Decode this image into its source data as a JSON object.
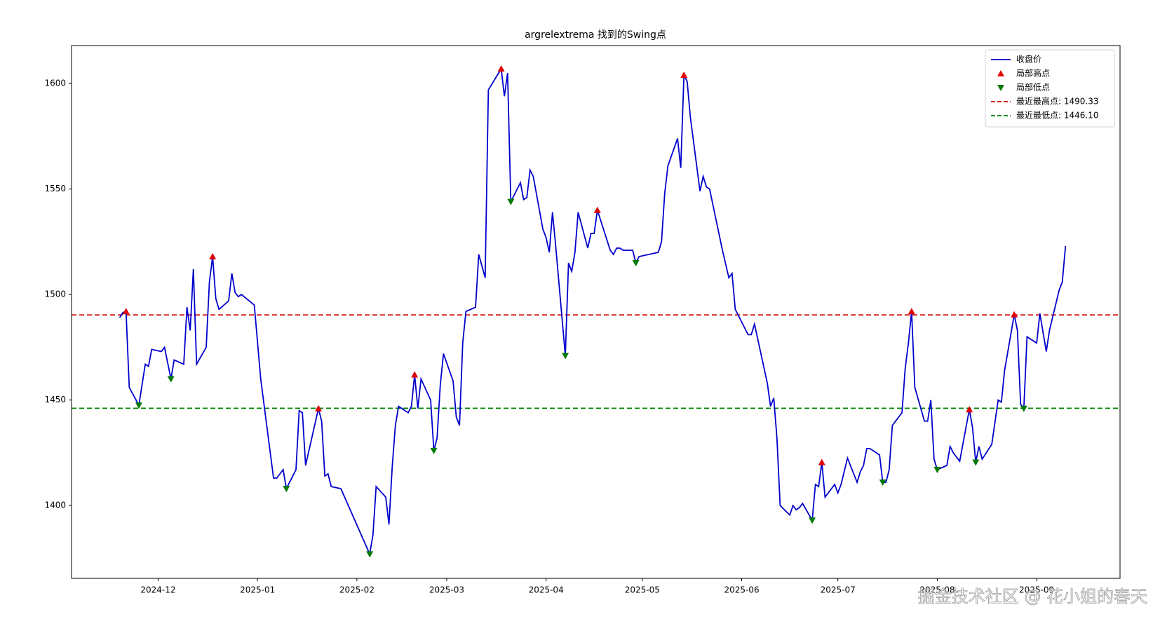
{
  "chart_data": {
    "type": "line",
    "title": "argrelextrema 找到的Swing点",
    "x": [
      -12,
      -11,
      -10,
      -9,
      -6,
      -4,
      -3,
      -2,
      1,
      2,
      4,
      5,
      8,
      9,
      10,
      11,
      12,
      15,
      16,
      17,
      18,
      19,
      22,
      23,
      24,
      25,
      26,
      30,
      32,
      36,
      37,
      39,
      40,
      43,
      44,
      45,
      46,
      50,
      51,
      52,
      53,
      54,
      57,
      66,
      67,
      68,
      71,
      72,
      73,
      74,
      75,
      78,
      79,
      80,
      81,
      82,
      85,
      86,
      87,
      88,
      89,
      92,
      93,
      94,
      95,
      96,
      99,
      100,
      102,
      103,
      107,
      108,
      109,
      110,
      113,
      114,
      115,
      116,
      117,
      120,
      121,
      122,
      123,
      124,
      127,
      128,
      129,
      130,
      131,
      134,
      135,
      136,
      137,
      141,
      142,
      143,
      144,
      145,
      148,
      149,
      150,
      156,
      157,
      158,
      159,
      162,
      163,
      164,
      165,
      166,
      169,
      170,
      171,
      172,
      176,
      178,
      179,
      180,
      184,
      185,
      186,
      190,
      191,
      192,
      193,
      194,
      197,
      198,
      199,
      200,
      201,
      204,
      205,
      206,
      207,
      208,
      211,
      212,
      213,
      215,
      218,
      219,
      220,
      221,
      222,
      225,
      226,
      227,
      228,
      229,
      232,
      233,
      234,
      235,
      236,
      239,
      240,
      241,
      242,
      243,
      246,
      247,
      248,
      250,
      253,
      254,
      255,
      256,
      257,
      260,
      262,
      263,
      264,
      267,
      268,
      269,
      270,
      271,
      274,
      275,
      277,
      278,
      281,
      282,
      283
    ],
    "series": [
      {
        "name": "收盘价",
        "color": "#0000cd",
        "values": [
          1489,
          1491.5,
          1492,
          1456,
          1447.5,
          1467,
          1466,
          1474,
          1473,
          1475,
          1460,
          1469,
          1467,
          1494,
          1483,
          1512,
          1467,
          1475,
          1506,
          1518,
          1498,
          1493,
          1497,
          1510,
          1501,
          1499,
          1500,
          1495,
          1460,
          1413,
          1413,
          1417,
          1408,
          1417,
          1445,
          1444,
          1419,
          1446,
          1440,
          1414,
          1415,
          1409,
          1408,
          1377,
          1386,
          1409,
          1404,
          1391,
          1418,
          1438,
          1447,
          1444,
          1447,
          1462,
          1446,
          1460,
          1450,
          1426,
          1432,
          1457,
          1472,
          1459,
          1442,
          1438,
          1477,
          1492,
          1494,
          1519,
          1508,
          1597,
          1607,
          1594,
          1605,
          1544,
          1553,
          1545,
          1546,
          1559,
          1556,
          1531,
          1527,
          1520,
          1539,
          1523,
          1471,
          1515,
          1511,
          1520,
          1539,
          1522,
          1529,
          1529,
          1540,
          1521,
          1519,
          1522,
          1522,
          1521,
          1521,
          1515,
          1518,
          1520,
          1525,
          1548,
          1561,
          1574,
          1560,
          1604,
          1601,
          1584,
          1549,
          1556,
          1551,
          1550,
          1521,
          1508,
          1510,
          1493,
          1481,
          1481,
          1486,
          1458,
          1447,
          1451,
          1432,
          1400,
          1395.5,
          1400,
          1398,
          1399,
          1401,
          1393,
          1410,
          1409,
          1420.5,
          1404,
          1410,
          1406,
          1410,
          1422.5,
          1411,
          1416,
          1419,
          1427,
          1427,
          1424,
          1411,
          1411,
          1417,
          1438,
          1444,
          1465,
          1477,
          1492,
          1456,
          1440,
          1440,
          1450,
          1422,
          1417,
          1419,
          1428,
          1425,
          1421,
          1445.5,
          1437,
          1420.5,
          1428,
          1422,
          1429,
          1450,
          1449,
          1464,
          1490.5,
          1483,
          1448,
          1446,
          1480,
          1477,
          1491,
          1473,
          1483,
          1502,
          1506,
          1523
        ]
      },
      {
        "name": "局部高点",
        "type": "scatter",
        "marker": "^",
        "color": "#e00000",
        "x": [
          -10,
          17,
          50,
          80,
          107,
          137,
          164,
          207,
          235,
          253,
          267
        ],
        "values": [
          1492,
          1518,
          1446,
          1462,
          1607,
          1540,
          1604,
          1420.5,
          1492,
          1445.5,
          1490.5
        ]
      },
      {
        "name": "局部低点",
        "type": "scatter",
        "marker": "v",
        "color": "#007a00",
        "x": [
          -6,
          4,
          40,
          66,
          86,
          110,
          127,
          149,
          204,
          226,
          243,
          255,
          270
        ],
        "values": [
          1447.5,
          1460,
          1408,
          1377,
          1426,
          1544,
          1471,
          1515,
          1393,
          1411,
          1417,
          1420.5,
          1446
        ]
      }
    ],
    "hlines": [
      {
        "name": "最近最高点: 1490.33",
        "value": 1490.33,
        "color": "#d00000"
      },
      {
        "name": "最近最低点: 1446.10",
        "value": 1446.1,
        "color": "#008000"
      }
    ],
    "xlim": [
      -27,
      300
    ],
    "ylim": [
      1365.5,
      1618
    ],
    "xticks": [
      {
        "value": 0,
        "label": "2024-12"
      },
      {
        "value": 31,
        "label": "2025-01"
      },
      {
        "value": 62,
        "label": "2025-02"
      },
      {
        "value": 90,
        "label": "2025-03"
      },
      {
        "value": 121,
        "label": "2025-04"
      },
      {
        "value": 151,
        "label": "2025-05"
      },
      {
        "value": 182,
        "label": "2025-06"
      },
      {
        "value": 212,
        "label": "2025-07"
      },
      {
        "value": 243,
        "label": "2025-08"
      },
      {
        "value": 274,
        "label": "2025-09"
      }
    ],
    "yticks": [
      1400,
      1450,
      1500,
      1550,
      1600
    ],
    "legend": "upper right",
    "watermark": "掘金技术社区 @ 花小姐的春天"
  }
}
